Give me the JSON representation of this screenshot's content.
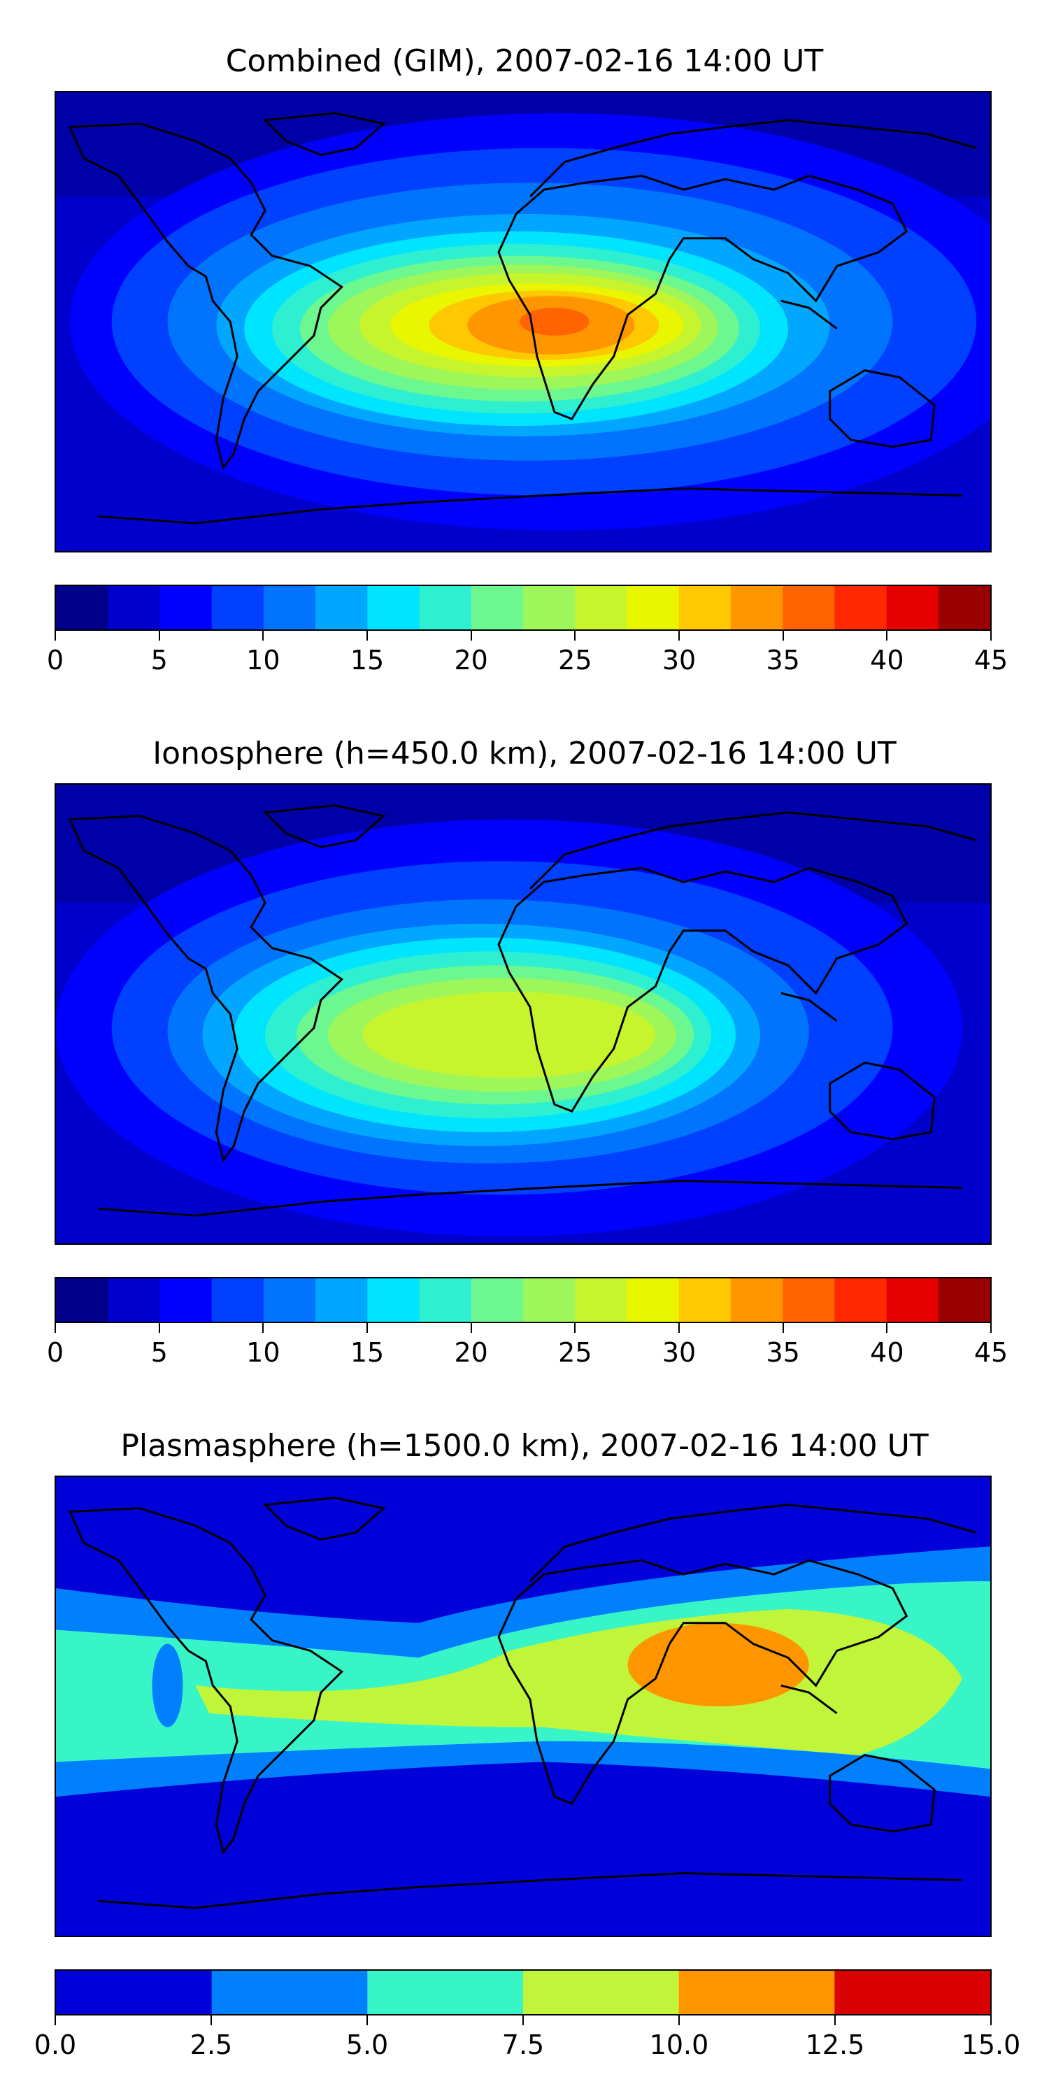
{
  "panels": [
    {
      "title": "Combined (GIM), 2007-02-16 14:00 UT",
      "colorbar": {
        "ticks": [
          "0",
          "5",
          "10",
          "15",
          "20",
          "25",
          "30",
          "35",
          "40",
          "45"
        ],
        "min": 0,
        "max": 45,
        "levels": 18,
        "colors": [
          "#00008b",
          "#0000cc",
          "#0000ff",
          "#0040ff",
          "#0073ff",
          "#00a6ff",
          "#00e5ff",
          "#2ef0d0",
          "#6cf78f",
          "#9df65a",
          "#c6f52e",
          "#eaf500",
          "#ffc800",
          "#ff9600",
          "#ff6400",
          "#ff2800",
          "#e60000",
          "#9b0000"
        ]
      }
    },
    {
      "title": "Ionosphere  (h=450.0 km), 2007-02-16 14:00 UT",
      "colorbar": {
        "ticks": [
          "0",
          "5",
          "10",
          "15",
          "20",
          "25",
          "30",
          "35",
          "40",
          "45"
        ],
        "min": 0,
        "max": 45,
        "levels": 18,
        "colors": [
          "#00008b",
          "#0000cc",
          "#0000ff",
          "#0040ff",
          "#0073ff",
          "#00a6ff",
          "#00e5ff",
          "#2ef0d0",
          "#6cf78f",
          "#9df65a",
          "#c6f52e",
          "#eaf500",
          "#ffc800",
          "#ff9600",
          "#ff6400",
          "#ff2800",
          "#e60000",
          "#9b0000"
        ]
      }
    },
    {
      "title": "Plasmasphere (h=1500.0 km), 2007-02-16 14:00 UT",
      "colorbar": {
        "ticks": [
          "0.0",
          "2.5",
          "5.0",
          "7.5",
          "10.0",
          "12.5",
          "15.0"
        ],
        "min": 0,
        "max": 15,
        "levels": 6,
        "colors": [
          "#0000d8",
          "#0080ff",
          "#38f5c8",
          "#c0f53a",
          "#ff9600",
          "#d80000"
        ]
      }
    }
  ]
}
